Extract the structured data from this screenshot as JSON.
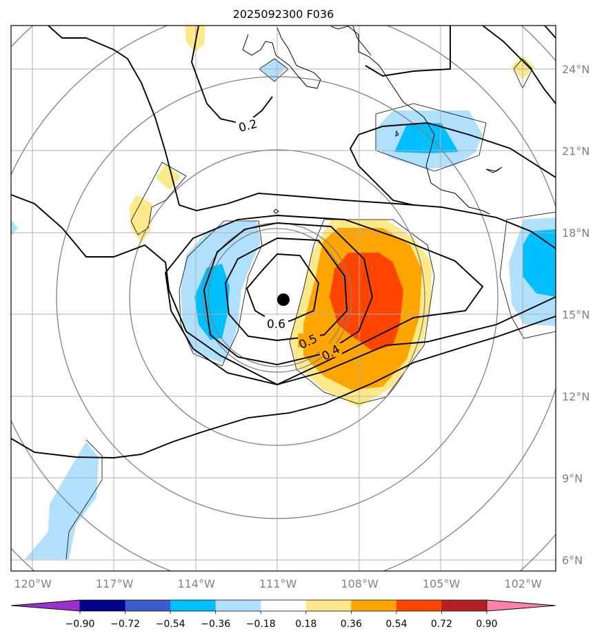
{
  "chart_data": {
    "type": "heatmap",
    "title": "2025092300 F036",
    "x_ticks": [
      "120°W",
      "117°W",
      "114°W",
      "111°W",
      "108°W",
      "105°W",
      "102°W"
    ],
    "x_tick_values": [
      -120,
      -117,
      -114,
      -111,
      -108,
      -105,
      -102
    ],
    "y_ticks": [
      "6°N",
      "9°N",
      "12°N",
      "15°N",
      "18°N",
      "21°N",
      "24°N"
    ],
    "y_tick_values": [
      6,
      9,
      12,
      15,
      18,
      21,
      24
    ],
    "xlim": [
      -120.8,
      -100.8
    ],
    "ylim": [
      5.6,
      25.6
    ],
    "center": {
      "lon": -110.8,
      "lat": 15.55
    },
    "contour_labels": [
      {
        "text": "0.2",
        "lon": -109.9,
        "lat": 22.5
      },
      {
        "text": "0.6",
        "lon": -111.0,
        "lat": 15.0
      },
      {
        "text": "0.5",
        "lon": -109.1,
        "lat": 14.1
      },
      {
        "text": "0.4",
        "lon": -108.6,
        "lat": 13.6
      }
    ],
    "colorbar": {
      "ticks": [
        "−0.90",
        "−0.72",
        "−0.54",
        "−0.36",
        "−0.18",
        "0.18",
        "0.36",
        "0.54",
        "0.72",
        "0.90"
      ],
      "levels": [
        -0.9,
        -0.72,
        -0.54,
        -0.36,
        -0.18,
        0.18,
        0.36,
        0.54,
        0.72,
        0.9
      ],
      "colors": [
        "#9932cc",
        "#00008b",
        "#3a5fcd",
        "#00bfff",
        "#b0e0fb",
        "#ffffff",
        "#fde88a",
        "#ffa500",
        "#ff4500",
        "#b22222",
        "#ff80aa"
      ],
      "extend": "both"
    }
  }
}
